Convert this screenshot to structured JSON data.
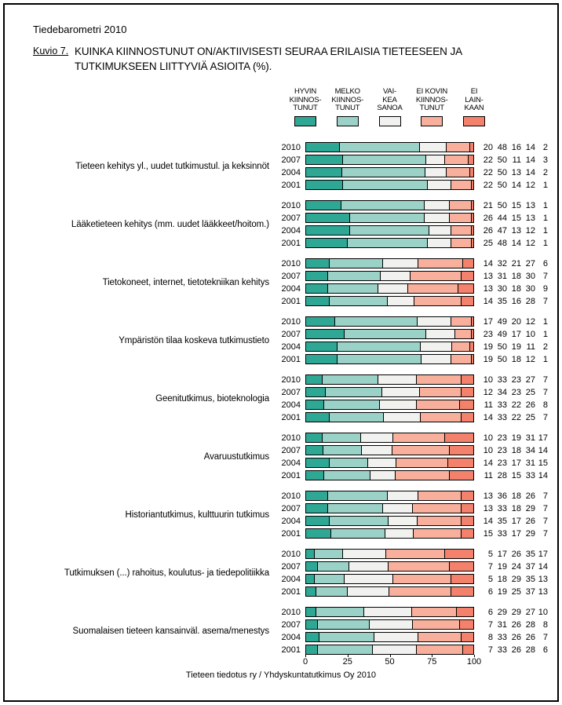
{
  "header": {
    "report_title": "Tiedebarometri 2010",
    "figure_label": "Kuvio 7.",
    "title_line1": "KUINKA KIINNOSTUNUT ON/AKTIIVISESTI SEURAA ERILAISIA TIETEESEEN JA",
    "title_line2": "TUTKIMUKSEEN LIITTYVIÄ ASIOITA (%)."
  },
  "footer": {
    "credit": "Tieteen tiedotus ry / Yhdyskuntatutkimus Oy 2010"
  },
  "chart_data": {
    "type": "bar",
    "orientation": "horizontal-stacked",
    "xlim": [
      0,
      100
    ],
    "axis_ticks": [
      0,
      25,
      50,
      75,
      100
    ],
    "legend_position": "top",
    "grid": false,
    "legend": [
      {
        "id": "hyvin-kiinnostunut",
        "lines": [
          "HYVIN",
          "KIINNOS-",
          "TUNUT"
        ],
        "color": "#2EA795"
      },
      {
        "id": "melko-kiinnostunut",
        "lines": [
          "MELKO",
          "KIINNOS-",
          "TUNUT"
        ],
        "color": "#9AD2C8"
      },
      {
        "id": "vaikea-sanoa",
        "lines": [
          "VAI-",
          "KEA",
          "SANOA"
        ],
        "color": "#F1F1EF"
      },
      {
        "id": "ei-kovin-kiinnostunut",
        "lines": [
          "EI KOVIN",
          "KIINNOS-",
          "TUNUT"
        ],
        "color": "#F8B09D"
      },
      {
        "id": "ei-lainkaan",
        "lines": [
          "EI",
          "LAIN-",
          "KAAN"
        ],
        "color": "#F4816B"
      }
    ],
    "years": [
      "2010",
      "2007",
      "2004",
      "2001"
    ],
    "groups": [
      {
        "label": "Tieteen kehitys yl., uudet tutkimustul. ja keksinnöt",
        "rows": [
          {
            "year": "2010",
            "values": [
              20,
              48,
              16,
              14,
              2
            ]
          },
          {
            "year": "2007",
            "values": [
              22,
              50,
              11,
              14,
              3
            ]
          },
          {
            "year": "2004",
            "values": [
              22,
              50,
              13,
              14,
              2
            ]
          },
          {
            "year": "2001",
            "values": [
              22,
              50,
              14,
              12,
              1
            ]
          }
        ]
      },
      {
        "label": "Lääketieteen kehitys (mm. uudet lääkkeet/hoitom.)",
        "rows": [
          {
            "year": "2010",
            "values": [
              21,
              50,
              15,
              13,
              1
            ]
          },
          {
            "year": "2007",
            "values": [
              26,
              44,
              15,
              13,
              1
            ]
          },
          {
            "year": "2004",
            "values": [
              26,
              47,
              13,
              12,
              1
            ]
          },
          {
            "year": "2001",
            "values": [
              25,
              48,
              14,
              12,
              1
            ]
          }
        ]
      },
      {
        "label": "Tietokoneet, internet, tietotekniikan kehitys",
        "rows": [
          {
            "year": "2010",
            "values": [
              14,
              32,
              21,
              27,
              6
            ]
          },
          {
            "year": "2007",
            "values": [
              13,
              31,
              18,
              30,
              7
            ]
          },
          {
            "year": "2004",
            "values": [
              13,
              30,
              18,
              30,
              9
            ]
          },
          {
            "year": "2001",
            "values": [
              14,
              35,
              16,
              28,
              7
            ]
          }
        ]
      },
      {
        "label": "Ympäristön tilaa koskeva tutkimustieto",
        "rows": [
          {
            "year": "2010",
            "values": [
              17,
              49,
              20,
              12,
              1
            ]
          },
          {
            "year": "2007",
            "values": [
              23,
              49,
              17,
              10,
              1
            ]
          },
          {
            "year": "2004",
            "values": [
              19,
              50,
              19,
              11,
              2
            ]
          },
          {
            "year": "2001",
            "values": [
              19,
              50,
              18,
              12,
              1
            ]
          }
        ]
      },
      {
        "label": "Geenitutkimus, bioteknologia",
        "rows": [
          {
            "year": "2010",
            "values": [
              10,
              33,
              23,
              27,
              7
            ]
          },
          {
            "year": "2007",
            "values": [
              12,
              34,
              23,
              25,
              7
            ]
          },
          {
            "year": "2004",
            "values": [
              11,
              33,
              22,
              26,
              8
            ]
          },
          {
            "year": "2001",
            "values": [
              14,
              33,
              22,
              25,
              7
            ]
          }
        ]
      },
      {
        "label": "Avaruustutkimus",
        "rows": [
          {
            "year": "2010",
            "values": [
              10,
              23,
              19,
              31,
              17
            ]
          },
          {
            "year": "2007",
            "values": [
              10,
              23,
              18,
              34,
              14
            ]
          },
          {
            "year": "2004",
            "values": [
              14,
              23,
              17,
              31,
              15
            ]
          },
          {
            "year": "2001",
            "values": [
              11,
              28,
              15,
              33,
              14
            ]
          }
        ]
      },
      {
        "label": "Historiantutkimus, kulttuurin tutkimus",
        "rows": [
          {
            "year": "2010",
            "values": [
              13,
              36,
              18,
              26,
              7
            ]
          },
          {
            "year": "2007",
            "values": [
              13,
              33,
              18,
              29,
              7
            ]
          },
          {
            "year": "2004",
            "values": [
              14,
              35,
              17,
              26,
              7
            ]
          },
          {
            "year": "2001",
            "values": [
              15,
              33,
              17,
              29,
              7
            ]
          }
        ]
      },
      {
        "label": "Tutkimuksen (...) rahoitus, koulutus- ja tiedepolitiikka",
        "rows": [
          {
            "year": "2010",
            "values": [
              5,
              17,
              26,
              35,
              17
            ]
          },
          {
            "year": "2007",
            "values": [
              7,
              19,
              24,
              37,
              14
            ]
          },
          {
            "year": "2004",
            "values": [
              5,
              18,
              29,
              35,
              13
            ]
          },
          {
            "year": "2001",
            "values": [
              6,
              19,
              25,
              37,
              13
            ]
          }
        ]
      },
      {
        "label": "Suomalaisen tieteen kansainväl. asema/menestys",
        "rows": [
          {
            "year": "2010",
            "values": [
              6,
              29,
              29,
              27,
              10
            ]
          },
          {
            "year": "2007",
            "values": [
              7,
              31,
              26,
              28,
              8
            ]
          },
          {
            "year": "2004",
            "values": [
              8,
              33,
              26,
              26,
              7
            ]
          },
          {
            "year": "2001",
            "values": [
              7,
              33,
              26,
              28,
              6
            ]
          }
        ]
      }
    ]
  }
}
